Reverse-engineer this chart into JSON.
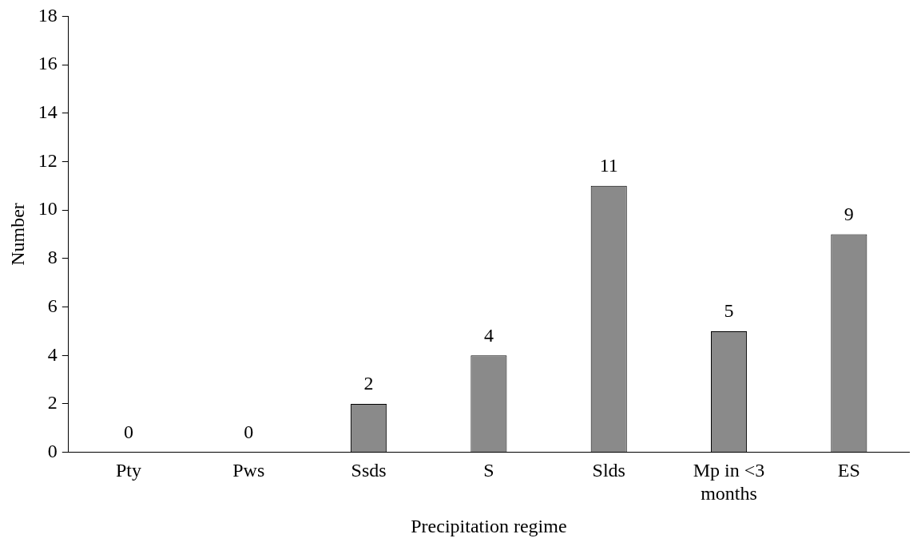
{
  "chart_data": {
    "type": "bar",
    "xlabel": "Precipitation regime",
    "ylabel": "Number",
    "categories": [
      "Pty",
      "Pws",
      "Ssds",
      "S",
      "Slds",
      "Mp in <3 months",
      "ES"
    ],
    "values": [
      0,
      0,
      2,
      4,
      11,
      5,
      9
    ],
    "color": "#8a8a8a",
    "ylim": [
      0,
      18
    ],
    "yticks": [
      0,
      2,
      4,
      6,
      8,
      10,
      12,
      14,
      16,
      18
    ],
    "grid": false,
    "legend": false,
    "data_labels": true
  }
}
